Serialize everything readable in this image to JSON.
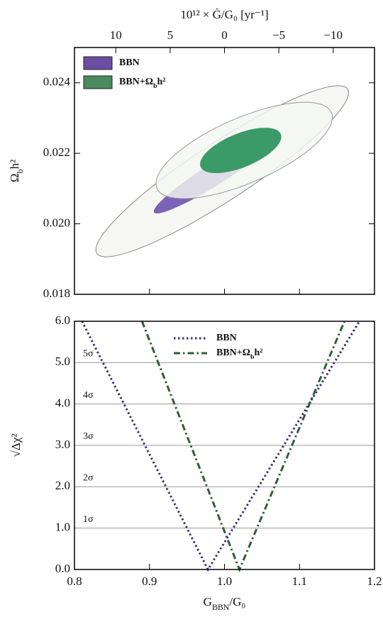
{
  "chart_data": [
    {
      "type": "contour",
      "x2label": "10¹² × Ġ/G₀ [yr⁻¹]",
      "x2lim": [
        13.8,
        -13.8
      ],
      "x2ticks": [
        10,
        5,
        0,
        {
          "value": -5,
          "label": "−5"
        },
        {
          "value": -10,
          "label": "−10"
        }
      ],
      "xlim": [
        0.8,
        1.2
      ],
      "xticks": [
        0.8,
        0.9,
        1.0,
        1.1,
        1.2
      ],
      "ylim": [
        0.018,
        0.025
      ],
      "yticks": [
        0.018,
        {
          "value": 0.02,
          "label": "0.020"
        },
        0.022,
        0.024
      ],
      "ylabel": [
        "Ω",
        "b",
        "h²"
      ],
      "series": [
        {
          "name": [
            "BBN"
          ],
          "color": "#6b4ea3",
          "contours": [
            {
              "center": [
                0.997,
                0.02149
              ],
              "major": [
                1.1643,
                0.02382
              ],
              "minor": [
                1.0178,
                0.02081
              ],
              "fill": "#f6f7f5",
              "stroke": "#888",
              "opacity": 1
            },
            {
              "center": [
                0.9887,
                0.021434
              ],
              "major": [
                1.0714,
                0.022545
              ],
              "minor": [
                0.9962,
                0.021172
              ],
              "fill": "#7b63b8",
              "stroke": "none",
              "opacity": 1
            }
          ]
        },
        {
          "name": [
            "BBN+Ω",
            "b",
            "h²"
          ],
          "color": "#4a8a5e",
          "contours": [
            {
              "center": [
                1.0263,
                0.022081
              ],
              "major": [
                1.1427,
                0.023152
              ],
              "minor": [
                1.0432,
                0.021232
              ],
              "fill": "#f3f6f1",
              "stroke": "#999",
              "opacity": 0.82
            },
            {
              "center": [
                1.0216,
                0.022081
              ],
              "major": [
                1.0751,
                0.022545
              ],
              "minor": [
                1.03,
                0.021636
              ],
              "fill": "#3a9a68",
              "stroke": "none",
              "opacity": 1
            }
          ]
        }
      ]
    },
    {
      "type": "line",
      "xlim": [
        0.8,
        1.2
      ],
      "xticks": [
        0.8,
        0.9,
        {
          "value": 1.0,
          "label": "1.0"
        },
        1.1,
        1.2
      ],
      "xlabel": [
        "G",
        "BBN",
        "/G₀"
      ],
      "ylim": [
        0,
        6
      ],
      "yticks": [
        {
          "value": 0,
          "label": "0.0"
        },
        {
          "value": 1,
          "label": "1.0"
        },
        {
          "value": 2,
          "label": "2.0"
        },
        {
          "value": 3,
          "label": "3.0"
        },
        {
          "value": 4,
          "label": "4.0"
        },
        {
          "value": 5,
          "label": "5.0"
        },
        {
          "value": 6,
          "label": "6.0"
        }
      ],
      "ylabel": "√Δχ²",
      "grid": true,
      "annotations": [
        {
          "text": "1σ",
          "y": 1
        },
        {
          "text": "2σ",
          "y": 2
        },
        {
          "text": "3σ",
          "y": 3
        },
        {
          "text": "4σ",
          "y": 4
        },
        {
          "text": "5σ",
          "y": 5
        }
      ],
      "series": [
        {
          "name": [
            "BBN"
          ],
          "color": "#3e2b7a",
          "dash": "dotted",
          "x": [
            0.81,
            0.978,
            1.18
          ],
          "y": [
            6,
            0,
            6
          ]
        },
        {
          "name": [
            "BBN+Ω",
            "b",
            "h²"
          ],
          "color": "#2f5e3c",
          "dash": "dashdot",
          "x": [
            0.89,
            1.02,
            1.16
          ],
          "y": [
            6,
            0,
            6
          ]
        }
      ]
    }
  ]
}
